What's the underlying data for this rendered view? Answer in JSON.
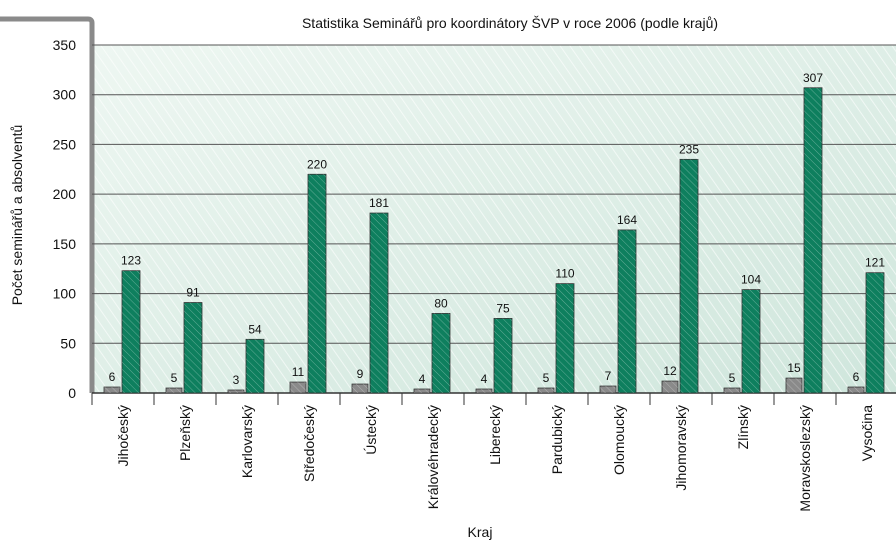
{
  "chart_data": {
    "type": "bar",
    "title": "Statistika Seminářů pro koordinátory ŠVP v roce 2006 (podle krajů)",
    "x_label": "Kraj",
    "y_label": "Počet seminářů a absolventů",
    "categories": [
      "Jihočeský",
      "Plzeňský",
      "Karlovarský",
      "Středočeský",
      "Ústecký",
      "Královéhradecký",
      "Liberecký",
      "Pardubický",
      "Olomoucký",
      "Jihomoravský",
      "Zlínský",
      "Moravskoslezský",
      "Vysočina"
    ],
    "series": [
      {
        "color": "#8a8a8a",
        "values": [
          6,
          5,
          3,
          11,
          9,
          4,
          4,
          5,
          7,
          12,
          5,
          15,
          6
        ]
      },
      {
        "color": "#0e7f5e",
        "values": [
          123,
          91,
          54,
          220,
          181,
          80,
          75,
          110,
          164,
          235,
          104,
          307,
          121
        ]
      }
    ],
    "ylim": [
      0,
      350
    ],
    "yticks": [
      0,
      50,
      100,
      150,
      200,
      250,
      300,
      350
    ],
    "grid": true
  }
}
